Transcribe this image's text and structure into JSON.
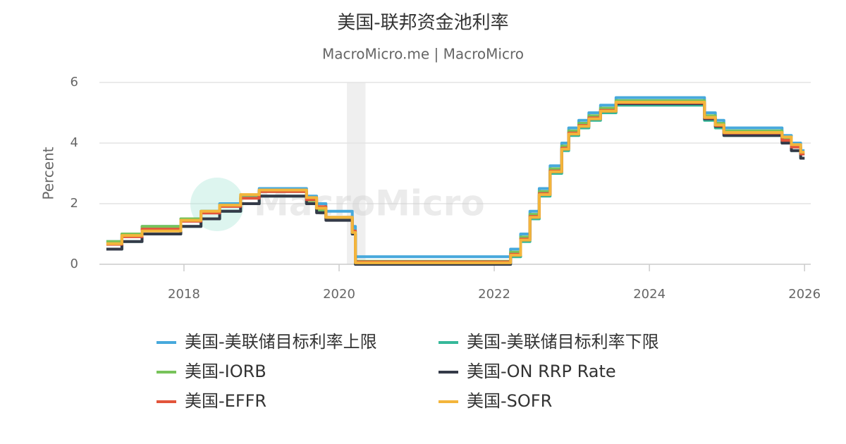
{
  "chart_data": {
    "type": "line",
    "title": "美国-联邦资金池利率",
    "subtitle": "MacroMicro.me | MacroMicro",
    "watermark": "MacroMicro",
    "y_label": "Percent",
    "xlim": [
      2016.91,
      2026.08
    ],
    "xticks": [
      2018,
      2020,
      2022,
      2024,
      2026
    ],
    "ylim": [
      0,
      6
    ],
    "yticks": [
      0,
      2,
      4,
      6
    ],
    "grid": true,
    "legend": "bottom",
    "shaded": [
      2020.1,
      2020.34
    ],
    "x": [
      2017.0,
      2017.2,
      2017.2,
      2017.46,
      2017.46,
      2017.96,
      2017.96,
      2018.22,
      2018.22,
      2018.46,
      2018.46,
      2018.73,
      2018.73,
      2018.97,
      2018.97,
      2019.58,
      2019.58,
      2019.71,
      2019.71,
      2019.83,
      2019.83,
      2020.17,
      2020.17,
      2020.21,
      2020.21,
      2022.21,
      2022.21,
      2022.34,
      2022.34,
      2022.46,
      2022.46,
      2022.58,
      2022.58,
      2022.72,
      2022.72,
      2022.87,
      2022.87,
      2022.96,
      2022.96,
      2023.09,
      2023.09,
      2023.22,
      2023.22,
      2023.37,
      2023.37,
      2023.57,
      2023.57,
      2024.71,
      2024.71,
      2024.85,
      2024.85,
      2024.96,
      2024.96,
      2025.71,
      2025.71,
      2025.83,
      2025.83,
      2025.95,
      2025.95,
      2026.0
    ],
    "series": [
      {
        "name": "美国-美联储目标利率上限",
        "color": "#47a9dc",
        "values": [
          0.75,
          0.75,
          1.0,
          1.0,
          1.25,
          1.25,
          1.5,
          1.5,
          1.75,
          1.75,
          2.0,
          2.0,
          2.25,
          2.25,
          2.5,
          2.5,
          2.25,
          2.25,
          2.0,
          2.0,
          1.75,
          1.75,
          1.25,
          1.25,
          0.25,
          0.25,
          0.5,
          0.5,
          1.0,
          1.0,
          1.75,
          1.75,
          2.5,
          2.5,
          3.25,
          3.25,
          4.0,
          4.0,
          4.5,
          4.5,
          4.75,
          4.75,
          5.0,
          5.0,
          5.25,
          5.25,
          5.5,
          5.5,
          5.0,
          5.0,
          4.75,
          4.75,
          4.5,
          4.5,
          4.25,
          4.25,
          4.0,
          4.0,
          3.75,
          3.75
        ]
      },
      {
        "name": "美国-美联储目标利率下限",
        "color": "#36b89a",
        "values": [
          0.5,
          0.5,
          0.75,
          0.75,
          1.0,
          1.0,
          1.25,
          1.25,
          1.5,
          1.5,
          1.75,
          1.75,
          2.0,
          2.0,
          2.25,
          2.25,
          2.0,
          2.0,
          1.75,
          1.75,
          1.5,
          1.5,
          1.0,
          1.0,
          0,
          0,
          0.25,
          0.25,
          0.75,
          0.75,
          1.5,
          1.5,
          2.25,
          2.25,
          3.0,
          3.0,
          3.75,
          3.75,
          4.25,
          4.25,
          4.5,
          4.5,
          4.75,
          4.75,
          5.0,
          5.0,
          5.25,
          5.25,
          4.75,
          4.75,
          4.5,
          4.5,
          4.25,
          4.25,
          4.0,
          4.0,
          3.75,
          3.75,
          3.5,
          3.5
        ]
      },
      {
        "name": "美国-IORB",
        "color": "#78c35a",
        "values": [
          0.75,
          0.75,
          1.0,
          1.0,
          1.25,
          1.25,
          1.5,
          1.5,
          1.75,
          1.75,
          1.95,
          1.95,
          2.2,
          2.2,
          2.4,
          2.4,
          2.1,
          2.1,
          1.8,
          1.8,
          1.55,
          1.55,
          1.1,
          1.1,
          0.1,
          0.1,
          0.4,
          0.4,
          0.9,
          0.9,
          1.65,
          1.65,
          2.4,
          2.4,
          3.15,
          3.15,
          3.9,
          3.9,
          4.4,
          4.4,
          4.65,
          4.65,
          4.9,
          4.9,
          5.15,
          5.15,
          5.4,
          5.4,
          4.9,
          4.9,
          4.65,
          4.65,
          4.4,
          4.4,
          4.15,
          4.15,
          3.9,
          3.9,
          3.65,
          3.65
        ]
      },
      {
        "name": "美国-ON RRP Rate",
        "color": "#343a48",
        "values": [
          0.5,
          0.5,
          0.75,
          0.75,
          1.0,
          1.0,
          1.25,
          1.25,
          1.5,
          1.5,
          1.75,
          1.75,
          2.0,
          2.0,
          2.25,
          2.25,
          2.0,
          2.0,
          1.7,
          1.7,
          1.45,
          1.45,
          1.0,
          1.0,
          0,
          0,
          0.3,
          0.3,
          0.8,
          0.8,
          1.55,
          1.55,
          2.3,
          2.3,
          3.05,
          3.05,
          3.8,
          3.8,
          4.3,
          4.3,
          4.55,
          4.55,
          4.8,
          4.8,
          5.05,
          5.05,
          5.3,
          5.3,
          4.8,
          4.8,
          4.55,
          4.55,
          4.25,
          4.25,
          4.0,
          4.0,
          3.75,
          3.75,
          3.5,
          3.5
        ]
      },
      {
        "name": "美国-EFFR",
        "color": "#e2553b",
        "values": [
          0.66,
          0.66,
          0.91,
          0.91,
          1.16,
          1.16,
          1.42,
          1.42,
          1.69,
          1.69,
          1.91,
          1.91,
          2.18,
          2.18,
          2.4,
          2.4,
          2.13,
          2.13,
          1.9,
          1.9,
          1.55,
          1.55,
          1.1,
          1.1,
          0.08,
          0.08,
          0.33,
          0.33,
          0.83,
          0.83,
          1.58,
          1.58,
          2.33,
          2.33,
          3.08,
          3.08,
          3.83,
          3.83,
          4.33,
          4.33,
          4.58,
          4.58,
          4.83,
          4.83,
          5.08,
          5.08,
          5.33,
          5.33,
          4.83,
          4.83,
          4.58,
          4.58,
          4.33,
          4.33,
          4.09,
          4.09,
          3.87,
          3.87,
          3.64,
          3.64
        ]
      },
      {
        "name": "美国-SOFR",
        "color": "#f3b53b",
        "values": [
          0.68,
          0.68,
          0.95,
          0.95,
          1.1,
          1.1,
          1.45,
          1.45,
          1.75,
          1.75,
          1.95,
          1.95,
          2.3,
          2.3,
          2.45,
          2.45,
          2.2,
          2.2,
          1.85,
          1.85,
          1.55,
          1.55,
          1.05,
          1.05,
          0.05,
          0.05,
          0.3,
          0.3,
          0.8,
          0.8,
          1.55,
          1.55,
          2.3,
          2.3,
          3.05,
          3.05,
          3.8,
          3.8,
          4.3,
          4.3,
          4.55,
          4.55,
          4.8,
          4.8,
          5.05,
          5.05,
          5.35,
          5.35,
          4.85,
          4.85,
          4.6,
          4.6,
          4.35,
          4.35,
          4.2,
          4.2,
          3.95,
          3.95,
          3.7,
          3.7
        ]
      }
    ]
  }
}
